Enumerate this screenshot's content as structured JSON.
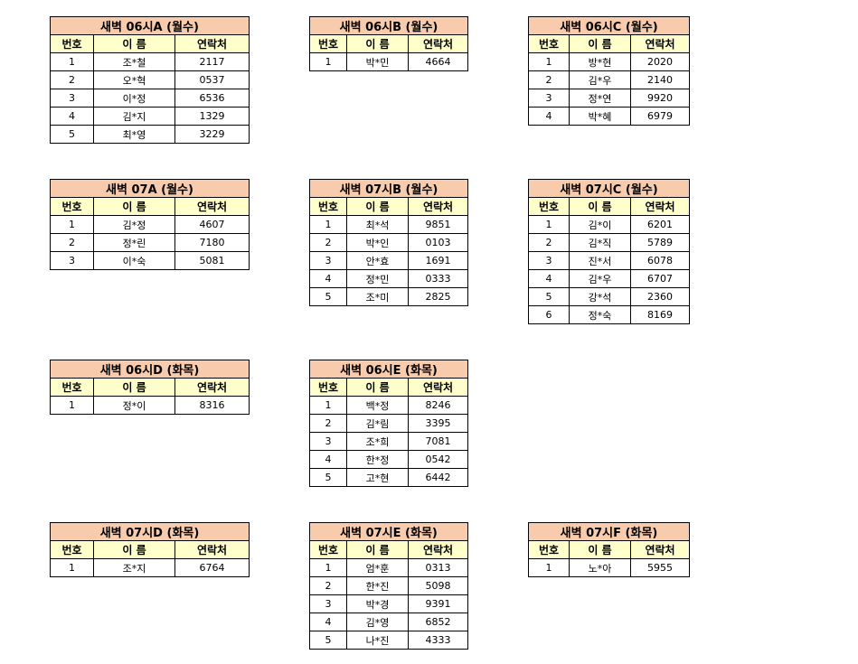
{
  "colors": {
    "title_bg": "#f8cbad",
    "header_bg": "#ffffcc"
  },
  "headers": [
    "번호",
    "이 름",
    "연락처"
  ],
  "tables": [
    {
      "title": "새벽 06시A (월수)",
      "rows": [
        [
          "1",
          "조*철",
          "2117"
        ],
        [
          "2",
          "오*혁",
          "0537"
        ],
        [
          "3",
          "이*정",
          "6536"
        ],
        [
          "4",
          "김*지",
          "1329"
        ],
        [
          "5",
          "최*영",
          "3229"
        ]
      ]
    },
    {
      "title": "새벽 06시B (월수)",
      "rows": [
        [
          "1",
          "박*민",
          "4664"
        ]
      ]
    },
    {
      "title": "새벽 06시C (월수)",
      "rows": [
        [
          "1",
          "방*현",
          "2020"
        ],
        [
          "2",
          "김*우",
          "2140"
        ],
        [
          "3",
          "정*연",
          "9920"
        ],
        [
          "4",
          "박*혜",
          "6979"
        ]
      ]
    },
    {
      "title": "새벽 07A (월수)",
      "rows": [
        [
          "1",
          "김*정",
          "4607"
        ],
        [
          "2",
          "정*린",
          "7180"
        ],
        [
          "3",
          "이*숙",
          "5081"
        ]
      ]
    },
    {
      "title": "새벽 07시B (월수)",
      "rows": [
        [
          "1",
          "최*석",
          "9851"
        ],
        [
          "2",
          "박*인",
          "0103"
        ],
        [
          "3",
          "안*효",
          "1691"
        ],
        [
          "4",
          "정*민",
          "0333"
        ],
        [
          "5",
          "조*미",
          "2825"
        ]
      ]
    },
    {
      "title": "새벽 07시C (월수)",
      "rows": [
        [
          "1",
          "김*이",
          "6201"
        ],
        [
          "2",
          "김*직",
          "5789"
        ],
        [
          "3",
          "진*서",
          "6078"
        ],
        [
          "4",
          "김*우",
          "6707"
        ],
        [
          "5",
          "강*석",
          "2360"
        ],
        [
          "6",
          "정*숙",
          "8169"
        ]
      ]
    },
    {
      "title": "새벽 06시D (화목)",
      "rows": [
        [
          "1",
          "정*이",
          "8316"
        ]
      ]
    },
    {
      "title": "새벽 06시E (화목)",
      "rows": [
        [
          "1",
          "백*정",
          "8246"
        ],
        [
          "2",
          "김*림",
          "3395"
        ],
        [
          "3",
          "조*희",
          "7081"
        ],
        [
          "4",
          "한*정",
          "0542"
        ],
        [
          "5",
          "고*현",
          "6442"
        ]
      ]
    },
    {
      "title": "새벽 07시D (화목)",
      "rows": [
        [
          "1",
          "조*지",
          "6764"
        ]
      ]
    },
    {
      "title": "새벽 07시E (화목)",
      "rows": [
        [
          "1",
          "엄*훈",
          "0313"
        ],
        [
          "2",
          "한*진",
          "5098"
        ],
        [
          "3",
          "박*경",
          "9391"
        ],
        [
          "4",
          "김*영",
          "6852"
        ],
        [
          "5",
          "나*진",
          "4333"
        ]
      ]
    },
    {
      "title": "새벽 07시F (화목)",
      "rows": [
        [
          "1",
          "노*아",
          "5955"
        ]
      ]
    }
  ]
}
